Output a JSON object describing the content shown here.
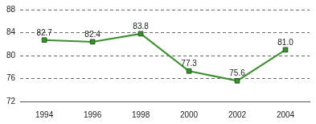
{
  "chart_data": {
    "type": "line",
    "categories": [
      "1994",
      "1996",
      "1998",
      "2000",
      "2002",
      "2004"
    ],
    "values": [
      82.7,
      82.4,
      83.8,
      77.3,
      75.6,
      81.0
    ],
    "value_labels": [
      "82.7",
      "82.4",
      "83.8",
      "77.3",
      "75.6",
      "81.0"
    ],
    "color": "#3b8f2e",
    "marker": "square",
    "line_style": "solid",
    "ylim": [
      72,
      88
    ],
    "yticks": [
      72,
      76,
      80,
      84,
      88
    ],
    "grid": true,
    "data_labels": true
  }
}
